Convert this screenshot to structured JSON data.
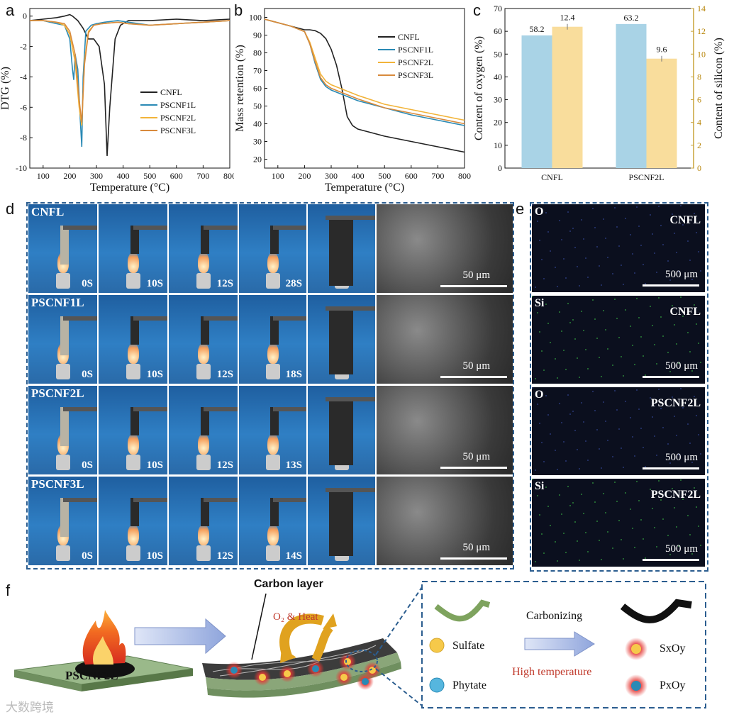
{
  "panels": {
    "a": "a",
    "b": "b",
    "c": "c",
    "d": "d",
    "e": "e",
    "f": "f"
  },
  "chart_data": [
    {
      "type": "line",
      "ylabel": "DTG (%)",
      "xlabel": "Temperature (°C)",
      "xlim": [
        50,
        800
      ],
      "ylim": [
        -10,
        0.5
      ],
      "xticks": [
        100,
        200,
        300,
        400,
        500,
        600,
        700,
        800
      ],
      "yticks": [
        0,
        -2,
        -4,
        -6,
        -8,
        -10
      ],
      "legend": "center-right",
      "series": [
        {
          "name": "CNFL",
          "color": "#222222",
          "x": [
            50,
            100,
            150,
            180,
            200,
            210,
            230,
            250,
            270,
            290,
            310,
            330,
            340,
            350,
            370,
            390,
            420,
            500,
            600,
            700,
            800
          ],
          "y": [
            -0.3,
            -0.2,
            -0.1,
            0.0,
            0.1,
            0.0,
            -0.3,
            -0.8,
            -1.5,
            -1.5,
            -2.0,
            -4.5,
            -9.2,
            -6.0,
            -1.5,
            -0.6,
            -0.3,
            -0.3,
            -0.2,
            -0.3,
            -0.2
          ]
        },
        {
          "name": "PSCNF1L",
          "color": "#2a8ab5",
          "x": [
            50,
            100,
            150,
            180,
            200,
            210,
            215,
            220,
            230,
            240,
            245,
            250,
            260,
            280,
            300,
            330,
            380,
            420,
            500,
            600,
            700,
            800
          ],
          "y": [
            -0.3,
            -0.3,
            -0.5,
            -0.6,
            -1.5,
            -3.5,
            -4.2,
            -2.5,
            -3.5,
            -7.0,
            -8.6,
            -4.0,
            -1.0,
            -0.6,
            -0.5,
            -0.4,
            -0.3,
            -0.4,
            -0.6,
            -0.5,
            -0.4,
            -0.3
          ]
        },
        {
          "name": "PSCNF2L",
          "color": "#f2b43a",
          "x": [
            50,
            100,
            150,
            180,
            200,
            220,
            235,
            245,
            255,
            270,
            290,
            320,
            380,
            420,
            500,
            600,
            700,
            800
          ],
          "y": [
            -0.3,
            -0.3,
            -0.4,
            -0.6,
            -1.2,
            -3.0,
            -6.0,
            -7.2,
            -3.0,
            -1.0,
            -0.6,
            -0.5,
            -0.4,
            -0.5,
            -0.6,
            -0.5,
            -0.4,
            -0.3
          ]
        },
        {
          "name": "PSCNF3L",
          "color": "#d88a3c",
          "x": [
            50,
            100,
            150,
            180,
            200,
            220,
            235,
            245,
            255,
            270,
            290,
            320,
            380,
            420,
            500,
            600,
            700,
            800
          ],
          "y": [
            -0.3,
            -0.3,
            -0.4,
            -0.5,
            -1.0,
            -2.5,
            -5.5,
            -7.0,
            -3.2,
            -1.1,
            -0.6,
            -0.5,
            -0.4,
            -0.5,
            -0.6,
            -0.5,
            -0.4,
            -0.3
          ]
        }
      ]
    },
    {
      "type": "line",
      "ylabel": "Mass retention (%)",
      "xlabel": "Temperature (°C)",
      "xlim": [
        50,
        800
      ],
      "ylim": [
        15,
        105
      ],
      "xticks": [
        100,
        200,
        300,
        400,
        500,
        600,
        700,
        800
      ],
      "yticks": [
        20,
        30,
        40,
        50,
        60,
        70,
        80,
        90,
        100
      ],
      "legend": "top-right",
      "series": [
        {
          "name": "CNFL",
          "color": "#222222",
          "x": [
            50,
            100,
            150,
            200,
            220,
            240,
            260,
            280,
            300,
            320,
            340,
            360,
            380,
            400,
            450,
            500,
            600,
            700,
            800
          ],
          "y": [
            99,
            97,
            95,
            93,
            93,
            92.5,
            91,
            88,
            82,
            73,
            60,
            44,
            39,
            37,
            35,
            33,
            30,
            27,
            24
          ]
        },
        {
          "name": "PSCNF1L",
          "color": "#2a8ab5",
          "x": [
            50,
            100,
            150,
            200,
            220,
            240,
            260,
            280,
            300,
            350,
            400,
            500,
            600,
            700,
            800
          ],
          "y": [
            99,
            97,
            95,
            92,
            85,
            74,
            65,
            61,
            59,
            56,
            53,
            49,
            45,
            42,
            39
          ]
        },
        {
          "name": "PSCNF2L",
          "color": "#f2b43a",
          "x": [
            50,
            100,
            150,
            200,
            220,
            240,
            260,
            280,
            300,
            350,
            400,
            500,
            600,
            700,
            800
          ],
          "y": [
            99,
            97,
            95,
            92,
            86,
            77,
            68,
            64,
            62,
            59,
            56,
            51,
            48,
            45,
            42
          ]
        },
        {
          "name": "PSCNF3L",
          "color": "#d88a3c",
          "x": [
            50,
            100,
            150,
            200,
            220,
            240,
            260,
            280,
            300,
            350,
            400,
            500,
            600,
            700,
            800
          ],
          "y": [
            99,
            97,
            95,
            92,
            85,
            75,
            66,
            62,
            60,
            57,
            54,
            49,
            46,
            43,
            40
          ]
        }
      ]
    },
    {
      "type": "bar",
      "categories": [
        "CNFL",
        "PSCNF2L"
      ],
      "ylabel": "Content of oxygen (%)",
      "y2label": "Content of silicon (%)",
      "ylim": [
        0,
        70
      ],
      "y2lim": [
        0,
        14
      ],
      "yticks": [
        0,
        10,
        20,
        30,
        40,
        50,
        60,
        70
      ],
      "y2ticks": [
        0,
        2,
        4,
        6,
        8,
        10,
        12,
        14
      ],
      "series": [
        {
          "name": "Oxygen",
          "axis": "left",
          "color": "#a9d3e6",
          "values": [
            58.2,
            63.2
          ],
          "labels": [
            "58.2",
            "63.2"
          ]
        },
        {
          "name": "Silicon",
          "axis": "right",
          "color": "#f9dd9c",
          "values": [
            12.4,
            9.6
          ],
          "labels": [
            "12.4",
            "9.6"
          ]
        }
      ]
    }
  ],
  "panel_d": {
    "rows": [
      {
        "label": "CNFL",
        "times": [
          "0S",
          "10S",
          "12S",
          "28S"
        ]
      },
      {
        "label": "PSCNF1L",
        "times": [
          "0S",
          "10S",
          "12S",
          "18S"
        ]
      },
      {
        "label": "PSCNF2L",
        "times": [
          "0S",
          "10S",
          "12S",
          "13S"
        ]
      },
      {
        "label": "PSCNF3L",
        "times": [
          "0S",
          "10S",
          "12S",
          "14S"
        ]
      }
    ],
    "scale": "50 μm"
  },
  "panel_e": {
    "maps": [
      {
        "element": "O",
        "sample": "CNFL",
        "dot": "#2b3a7a"
      },
      {
        "element": "Si",
        "sample": "CNFL",
        "dot": "#2e8a3a"
      },
      {
        "element": "O",
        "sample": "PSCNF2L",
        "dot": "#2b3a7a"
      },
      {
        "element": "Si",
        "sample": "PSCNF2L",
        "dot": "#2e8a3a"
      }
    ],
    "scale": "500 μm"
  },
  "panel_f": {
    "sheet_label": "PSCNF2L",
    "carbon_layer": "Carbon layer",
    "o2_heat": "O₂ & Heat",
    "sulfate": "Sulfate",
    "phytate": "Phytate",
    "carbonizing": "Carbonizing",
    "high_temperature": "High temperature",
    "sxoy": "SxOy",
    "pxoy": "PxOy"
  },
  "watermark": "大数跨境"
}
